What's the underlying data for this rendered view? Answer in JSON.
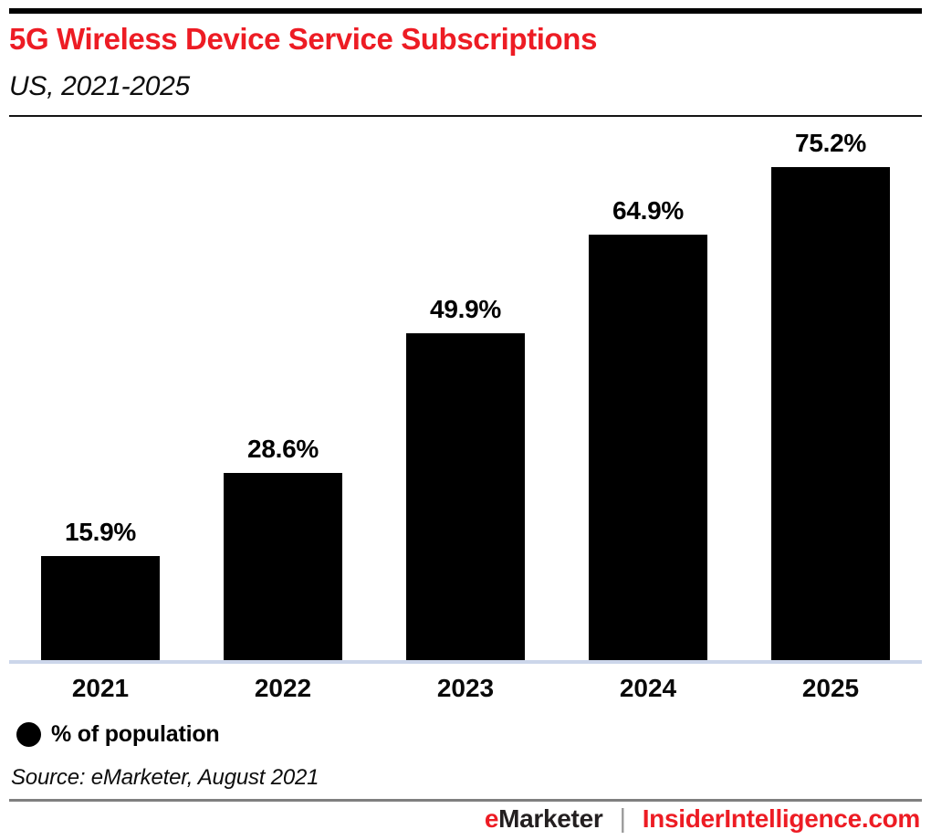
{
  "header": {
    "title": "5G Wireless Device Service Subscriptions",
    "subtitle": "US, 2021-2025"
  },
  "chart_data": {
    "type": "bar",
    "title": "5G Wireless Device Service Subscriptions",
    "subtitle": "US, 2021-2025",
    "categories": [
      "2021",
      "2022",
      "2023",
      "2024",
      "2025"
    ],
    "values": [
      15.9,
      28.6,
      49.9,
      64.9,
      75.2
    ],
    "value_labels": [
      "15.9%",
      "28.6%",
      "49.9%",
      "64.9%",
      "75.2%"
    ],
    "series_name": "% of population",
    "xlabel": "",
    "ylabel": "",
    "ylim": [
      0,
      80
    ],
    "grid": false,
    "bar_color": "#000000",
    "legend_position": "bottom-left"
  },
  "legend": {
    "marker": "black-circle",
    "label": "% of population"
  },
  "source": {
    "text": "Source: eMarketer, August 2021"
  },
  "footer": {
    "brand_e": "e",
    "brand_rest": "Marketer",
    "divider": "|",
    "site": "InsiderIntelligence.com"
  },
  "colors": {
    "accent_red": "#ed1c24",
    "bar_black": "#000000",
    "axis_baseline": "#ccd6ea",
    "footer_rule": "#7f7f7f",
    "brand_dark": "#231f20"
  }
}
